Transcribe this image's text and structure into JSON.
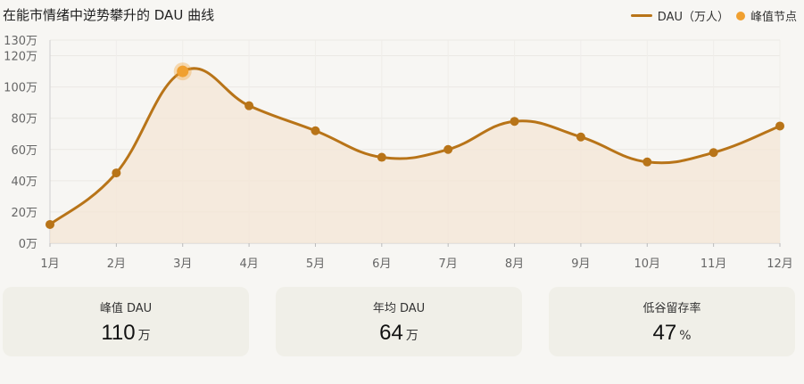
{
  "header": {
    "title": "在能市情绪中逆势攀升的 DAU 曲线"
  },
  "legend": {
    "line_label": "DAU（万人）",
    "peak_label": "峰值节点"
  },
  "colors": {
    "line": "#b87418",
    "peak": "#f0a030",
    "fill": "#f4e6d6"
  },
  "chart_data": {
    "type": "line",
    "title": "在能市情绪中逆势攀升的 DAU 曲线",
    "categories": [
      "1月",
      "2月",
      "3月",
      "4月",
      "5月",
      "6月",
      "7月",
      "8月",
      "9月",
      "10月",
      "11月",
      "12月"
    ],
    "series": [
      {
        "name": "DAU（万人）",
        "values": [
          12,
          45,
          110,
          88,
          72,
          55,
          60,
          78,
          68,
          52,
          58,
          75
        ]
      }
    ],
    "y_ticks": [
      {
        "value": 0,
        "label": "0万"
      },
      {
        "value": 20,
        "label": "20万"
      },
      {
        "value": 40,
        "label": "40万"
      },
      {
        "value": 60,
        "label": "60万"
      },
      {
        "value": 80,
        "label": "80万"
      },
      {
        "value": 100,
        "label": "100万"
      },
      {
        "value": 120,
        "label": "120万"
      },
      {
        "value": 130,
        "label": "130万"
      }
    ],
    "ylim": [
      0,
      130
    ],
    "peak_index": 2,
    "grid": true,
    "legend_position": "top-right"
  },
  "cards": [
    {
      "label": "峰值 DAU",
      "value": "110",
      "unit": "万"
    },
    {
      "label": "年均 DAU",
      "value": "64",
      "unit": "万"
    },
    {
      "label": "低谷留存率",
      "value": "47",
      "unit": "%"
    }
  ]
}
